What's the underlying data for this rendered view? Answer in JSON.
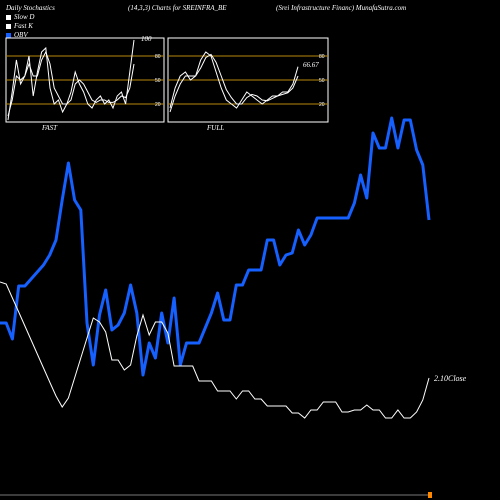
{
  "header": {
    "left": "Daily Stochastics",
    "center": "(14,3,3) Charts for SREINFRA_BE",
    "right": "(Srei  Infrastructure   Financ) MunafaSutra.com"
  },
  "legend": [
    {
      "label": "Slow  D",
      "color": "#ffffff"
    },
    {
      "label": "Fast K",
      "color": "#ffffff"
    },
    {
      "label": "OBV",
      "color": "#1560ff"
    }
  ],
  "panels": {
    "fast": {
      "label": "FAST",
      "value_label": "100"
    },
    "full": {
      "label": "FULL",
      "value_label": "66.67"
    }
  },
  "close_label": "2.10Close",
  "colors": {
    "background": "#000000",
    "obv": "#1560ff",
    "price": "#ffffff",
    "level_lines": "#b8860b"
  },
  "chart_data": [
    {
      "type": "line",
      "name": "FAST",
      "ylim": [
        0,
        100
      ],
      "yticks": [
        20,
        50,
        80
      ],
      "grid": true,
      "series": [
        {
          "name": "Fast K",
          "values": [
            0,
            35,
            75,
            45,
            55,
            80,
            30,
            60,
            85,
            90,
            40,
            20,
            25,
            10,
            20,
            35,
            60,
            45,
            35,
            20,
            15,
            25,
            30,
            20,
            25,
            15,
            30,
            35,
            20,
            60,
            100
          ]
        },
        {
          "name": "Slow  D",
          "values": [
            5,
            25,
            55,
            50,
            55,
            70,
            55,
            55,
            75,
            85,
            70,
            40,
            30,
            20,
            20,
            25,
            45,
            50,
            45,
            35,
            25,
            22,
            25,
            25,
            22,
            22,
            25,
            30,
            28,
            40,
            70
          ]
        }
      ]
    },
    {
      "type": "line",
      "name": "FULL",
      "ylim": [
        0,
        100
      ],
      "yticks": [
        20,
        50,
        80
      ],
      "grid": true,
      "series": [
        {
          "name": "Fast K",
          "values": [
            15,
            40,
            55,
            60,
            50,
            55,
            75,
            85,
            80,
            60,
            40,
            25,
            20,
            15,
            25,
            35,
            30,
            25,
            20,
            25,
            30,
            30,
            35,
            35,
            45,
            66.67
          ]
        },
        {
          "name": "Slow  D",
          "values": [
            10,
            30,
            45,
            55,
            55,
            55,
            65,
            78,
            82,
            72,
            55,
            38,
            28,
            20,
            20,
            28,
            32,
            30,
            25,
            24,
            27,
            30,
            32,
            34,
            40,
            55
          ]
        }
      ]
    },
    {
      "type": "line",
      "name": "main",
      "series": [
        {
          "name": "OBV",
          "values": [
            177,
            177,
            161,
            214,
            214,
            221,
            228,
            235,
            245,
            260,
            300,
            337,
            300,
            290,
            177,
            135,
            185,
            210,
            170,
            175,
            187,
            215,
            187,
            125,
            157,
            142,
            187,
            157,
            202,
            135,
            157,
            157,
            157,
            172,
            187,
            207,
            180,
            180,
            215,
            215,
            230,
            230,
            230,
            260,
            260,
            235,
            245,
            247,
            270,
            255,
            265,
            282,
            282,
            282,
            282,
            282,
            282,
            297,
            325,
            302,
            367,
            352,
            352,
            382,
            352,
            380,
            380,
            350,
            335,
            280
          ]
        },
        {
          "name": "Price",
          "values": [
            282,
            284,
            298,
            312,
            326,
            340,
            354,
            368,
            382,
            396,
            407,
            398,
            378,
            358,
            338,
            318,
            322,
            332,
            360,
            360,
            370,
            365,
            336,
            315,
            335,
            322,
            322,
            333,
            366,
            366,
            366,
            366,
            381,
            381,
            381,
            391,
            391,
            391,
            399,
            391,
            391,
            399,
            399,
            406,
            406,
            406,
            406,
            413,
            413,
            418,
            410,
            410,
            402,
            402,
            402,
            412,
            412,
            410,
            410,
            405,
            410,
            410,
            418,
            418,
            410,
            418,
            418,
            412,
            400,
            378
          ]
        }
      ]
    }
  ]
}
